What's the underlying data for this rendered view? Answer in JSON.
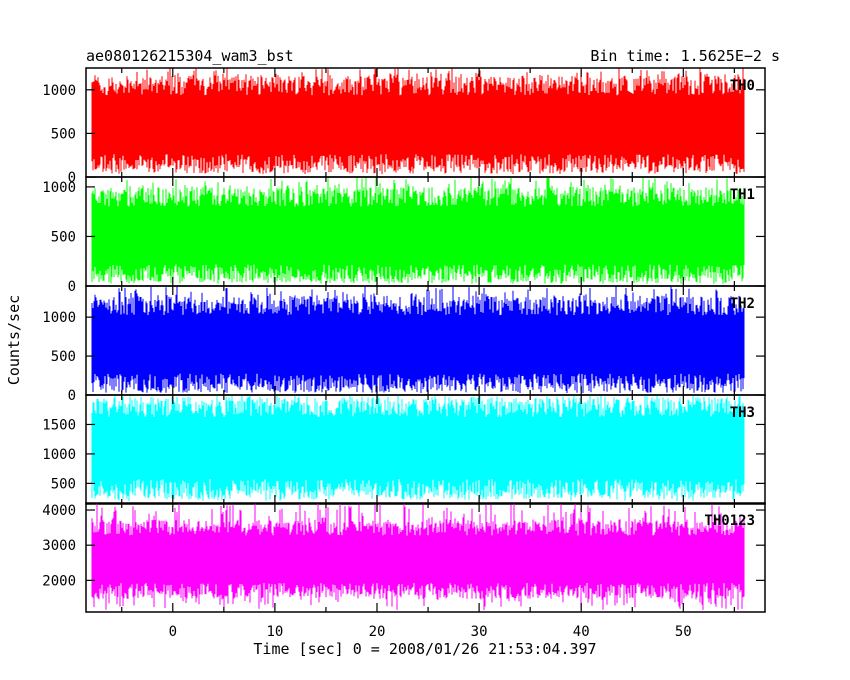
{
  "header": {
    "title": "ae080126215304_wam3_bst",
    "bin_time": "Bin time: 1.5625E−2 s"
  },
  "chart_data": {
    "type": "line",
    "title": "ae080126215304_wam3_bst",
    "subtitle": "Bin time: 1.5625E−2 s",
    "xlabel": "Time [sec] 0 = 2008/01/26 21:53:04.397",
    "ylabel": "Counts/sec",
    "xlim": [
      -8.5,
      58
    ],
    "data_x_range": [
      -7.9,
      55.9
    ],
    "x_ticks": [
      0,
      10,
      20,
      30,
      40,
      50
    ],
    "x_tick_labels": [
      "0",
      "10",
      "20",
      "30",
      "40",
      "50"
    ],
    "grid": false,
    "panels": [
      {
        "name": "TH0",
        "color": "#ff0000",
        "ylim": [
          0,
          1250
        ],
        "y_ticks": [
          0,
          500,
          1000
        ],
        "y_tick_labels": [
          "0",
          "500",
          "1000"
        ],
        "baseline": 150,
        "upper_envelope": 1050,
        "peak_max": 1250,
        "dip_min": 30
      },
      {
        "name": "TH1",
        "color": "#00ff00",
        "ylim": [
          0,
          1100
        ],
        "y_ticks": [
          0,
          500,
          1000
        ],
        "y_tick_labels": [
          "0",
          "500",
          "1000"
        ],
        "baseline": 120,
        "upper_envelope": 900,
        "peak_max": 1100,
        "dip_min": 30
      },
      {
        "name": "TH2",
        "color": "#0000ff",
        "ylim": [
          0,
          1400
        ],
        "y_ticks": [
          0,
          500,
          1000
        ],
        "y_tick_labels": [
          "0",
          "500",
          "1000"
        ],
        "baseline": 150,
        "upper_envelope": 1150,
        "peak_max": 1400,
        "dip_min": 30
      },
      {
        "name": "TH3",
        "color": "#00ffff",
        "ylim": [
          150,
          2000
        ],
        "y_ticks": [
          500,
          1000,
          1500
        ],
        "y_tick_labels": [
          "500",
          "1000",
          "1500"
        ],
        "baseline": 400,
        "upper_envelope": 1800,
        "peak_max": 2000,
        "dip_min": 200
      },
      {
        "name": "TH0123",
        "color": "#ff00ff",
        "ylim": [
          1100,
          4200
        ],
        "y_ticks": [
          2000,
          3000,
          4000
        ],
        "y_tick_labels": [
          "2000",
          "3000",
          "4000"
        ],
        "baseline": 1700,
        "upper_envelope": 3500,
        "peak_max": 4200,
        "dip_min": 1150
      }
    ]
  }
}
